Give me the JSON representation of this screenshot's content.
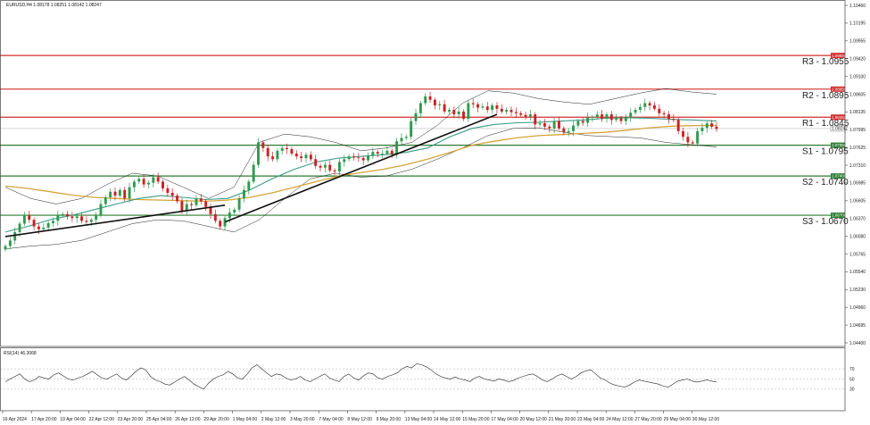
{
  "chart_data": {
    "type": "candlestick",
    "symbol_info": "EURUSD,H4  1.08178 1.08251 1.08142 1.08247",
    "current_price": "1.08247",
    "ylim": [
      1.0436,
      1.1054
    ],
    "grid": false,
    "y_ticks": [
      "1.10460",
      "1.10195",
      "1.09955",
      "1.09420",
      "1.09100",
      "1.08605",
      "1.08135",
      "1.07995",
      "1.07625",
      "1.07310",
      "1.06985",
      "1.06605",
      "1.06370",
      "1.06080",
      "1.05765",
      "1.05540",
      "1.05230",
      "1.04960",
      "1.04695",
      "1.04400"
    ],
    "levels": [
      {
        "label": "R3 - 1.0955",
        "value": 1.0955,
        "color": "#d32f2f",
        "tag": "1.09550"
      },
      {
        "label": "R2 - 1.0895",
        "value": 1.0895,
        "color": "#d32f2f",
        "tag": "1.08950"
      },
      {
        "label": "R1 - 1.0845",
        "value": 1.0845,
        "color": "#d32f2f",
        "tag": "1.08450"
      },
      {
        "label": "S1 - 1.0795",
        "value": 1.0795,
        "color": "#2e7d32",
        "tag": "1.07950"
      },
      {
        "label": "S2 - 1.0740",
        "value": 1.074,
        "color": "#2e7d32",
        "tag": "1.07400"
      },
      {
        "label": "S3 - 1.0670",
        "value": 1.067,
        "color": "#2e7d32",
        "tag": "1.06700"
      }
    ],
    "x_labels": [
      "16 Apr 2024",
      "17 Apr 20:00",
      "19 Apr 04:00",
      "22 Apr 12:00",
      "23 Apr 20:00",
      "25 Apr 04:00",
      "26 Apr 12:00",
      "29 Apr 20:00",
      "1 May 04:00",
      "2 May 12:00",
      "3 May 20:00",
      "7 May 04:00",
      "8 May 12:00",
      "9 May 20:00",
      "13 May 04:00",
      "14 May 12:00",
      "15 May 20:00",
      "17 May 04:00",
      "20 May 12:00",
      "21 May 20:00",
      "23 May 04:00",
      "24 May 12:00",
      "27 May 20:00",
      "29 May 04:00",
      "30 May 12:00"
    ],
    "closes": [
      1.0615,
      1.0625,
      1.064,
      1.0655,
      1.067,
      1.0662,
      1.065,
      1.0645,
      1.0648,
      1.0656,
      1.066,
      1.067,
      1.0672,
      1.0668,
      1.0665,
      1.0668,
      1.066,
      1.0658,
      1.0662,
      1.067,
      1.069,
      1.0702,
      1.0712,
      1.0705,
      1.0715,
      1.07,
      1.072,
      1.073,
      1.0735,
      1.0725,
      1.0728,
      1.0738,
      1.073,
      1.0718,
      1.071,
      1.0705,
      1.0695,
      1.0678,
      1.069,
      1.0688,
      1.07,
      1.0695,
      1.0685,
      1.0672,
      1.066,
      1.065,
      1.0665,
      1.0675,
      1.068,
      1.07,
      1.0715,
      1.073,
      1.076,
      1.08,
      1.079,
      1.0775,
      1.077,
      1.0785,
      1.079,
      1.0788,
      1.078,
      1.0775,
      1.0772,
      1.0778,
      1.077,
      1.0758,
      1.0755,
      1.076,
      1.075,
      1.0748,
      1.0765,
      1.077,
      1.0775,
      1.0773,
      1.0772,
      1.0768,
      1.0776,
      1.0783,
      1.078,
      1.078,
      1.0785,
      1.0778,
      1.0802,
      1.0808,
      1.081,
      1.0838,
      1.0852,
      1.087,
      1.0882,
      1.0876,
      1.0866,
      1.0868,
      1.0855,
      1.0858,
      1.085,
      1.0855,
      1.0842,
      1.087,
      1.0868,
      1.0862,
      1.0864,
      1.0858,
      1.0866,
      1.086,
      1.0855,
      1.0858,
      1.0854,
      1.0852,
      1.0849,
      1.0846,
      1.085,
      1.0832,
      1.0834,
      1.0828,
      1.0825,
      1.0838,
      1.0825,
      1.0818,
      1.082,
      1.083,
      1.0838,
      1.0835,
      1.0845,
      1.0845,
      1.085,
      1.0842,
      1.085,
      1.084,
      1.0843,
      1.0838,
      1.0845,
      1.0853,
      1.0858,
      1.0863,
      1.087,
      1.0866,
      1.086,
      1.0852,
      1.085,
      1.0842,
      1.084,
      1.082,
      1.081,
      1.08,
      1.0798,
      1.082,
      1.0826,
      1.0834,
      1.0828,
      1.0824
    ],
    "sma_green": [
      1.064,
      1.065,
      1.0662,
      1.067,
      1.068,
      1.069,
      1.07,
      1.0705,
      1.0702,
      1.0698,
      1.07,
      1.0715,
      1.0735,
      1.0752,
      1.0765,
      1.0772,
      1.0775,
      1.0778,
      1.0782,
      1.079,
      1.081,
      1.0825,
      1.0832,
      1.0835,
      1.0836,
      1.0838,
      1.084,
      1.0843,
      1.0844,
      1.0843,
      1.0841,
      1.084,
      1.0838
    ],
    "sma_orange": [
      1.0722,
      1.0718,
      1.0712,
      1.0706,
      1.0702,
      1.07,
      1.0698,
      1.0697,
      1.0696,
      1.0695,
      1.0697,
      1.0702,
      1.071,
      1.072,
      1.073,
      1.074,
      1.0746,
      1.0752,
      1.076,
      1.077,
      1.0782,
      1.0795,
      1.0802,
      1.0808,
      1.0812,
      1.0814,
      1.0816,
      1.0818,
      1.0822,
      1.0826,
      1.0829,
      1.083,
      1.083
    ],
    "bb_upper": [
      1.072,
      1.07,
      1.069,
      1.07,
      1.0725,
      1.0745,
      1.074,
      1.072,
      1.07,
      1.072,
      1.08,
      1.0815,
      1.081,
      1.08,
      1.0785,
      1.079,
      1.08,
      1.083,
      1.087,
      1.0892,
      1.0888,
      1.0878,
      1.0872,
      1.0868,
      1.0878,
      1.0888,
      1.0896,
      1.089,
      1.0886
    ],
    "bb_lower": [
      1.061,
      1.0615,
      1.0618,
      1.0625,
      1.064,
      1.0655,
      1.0662,
      1.066,
      1.065,
      1.064,
      1.0662,
      1.07,
      1.0735,
      1.0745,
      1.0738,
      1.074,
      1.0752,
      1.077,
      1.079,
      1.0812,
      1.0825,
      1.0826,
      1.0818,
      1.0812,
      1.081,
      1.0808,
      1.08,
      1.0796,
      1.0792
    ],
    "trendlines": [
      {
        "start": [
          0,
          1.0632
        ],
        "end": [
          46,
          1.0688
        ]
      },
      {
        "start": [
          46,
          1.0658
        ],
        "end": [
          103,
          1.085
        ]
      }
    ],
    "rsi": {
      "label": "RSI(14) 46.3068",
      "levels": [
        30,
        50,
        70
      ],
      "ylim": [
        0,
        100
      ],
      "values": [
        45,
        50,
        55,
        60,
        50,
        45,
        48,
        55,
        52,
        50,
        58,
        62,
        56,
        50,
        48,
        52,
        55,
        60,
        65,
        58,
        52,
        50,
        55,
        60,
        52,
        48,
        56,
        65,
        72,
        68,
        55,
        48,
        45,
        40,
        38,
        44,
        50,
        55,
        48,
        40,
        35,
        30,
        42,
        50,
        55,
        58,
        65,
        60,
        52,
        50,
        60,
        72,
        78,
        70,
        62,
        55,
        60,
        58,
        52,
        48,
        50,
        55,
        48,
        45,
        50,
        55,
        60,
        52,
        48,
        45,
        55,
        60,
        52,
        48,
        56,
        62,
        60,
        52,
        50,
        55,
        58,
        62,
        70,
        75,
        72,
        80,
        78,
        74,
        68,
        60,
        55,
        52,
        50,
        54,
        50,
        48,
        45,
        52,
        55,
        50,
        48,
        46,
        50,
        48,
        45,
        47,
        52,
        55,
        58,
        60,
        55,
        48,
        45,
        50,
        56,
        60,
        55,
        50,
        55,
        62,
        66,
        68,
        60,
        52,
        48,
        42,
        38,
        36,
        34,
        38,
        44,
        48,
        46,
        44,
        42,
        40,
        36,
        34,
        40,
        46,
        48,
        50,
        46,
        44,
        46,
        48,
        46,
        44
      ]
    }
  }
}
